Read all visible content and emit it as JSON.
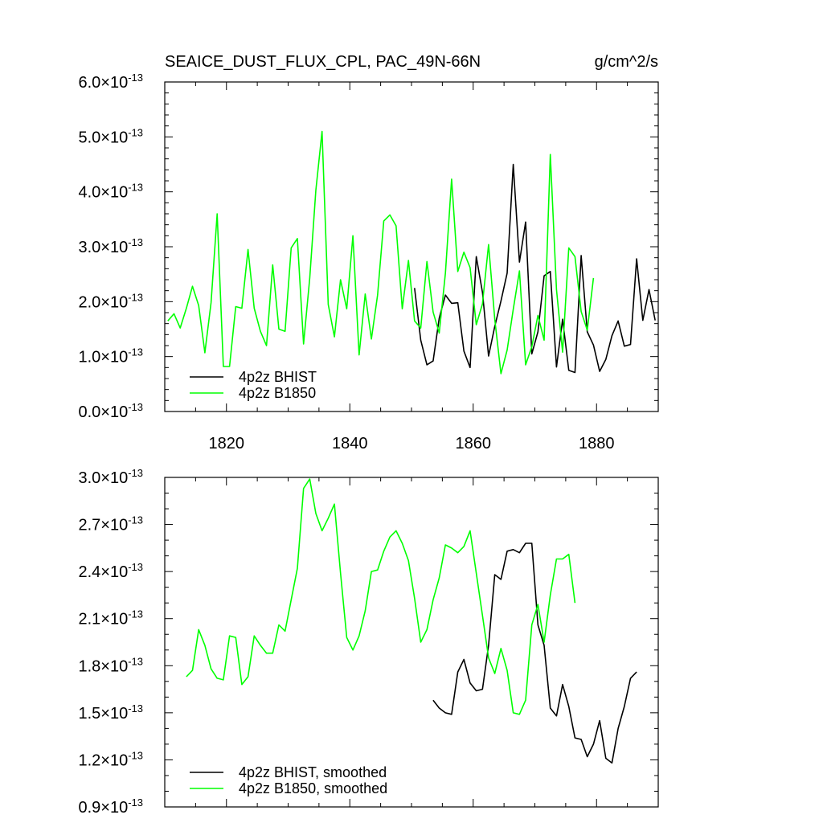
{
  "chart_data": [
    {
      "type": "line",
      "title": "SEAICE_DUST_FLUX_CPL, PAC_49N-66N",
      "units": "g/cm^2/s",
      "xlabel": "",
      "ylabel": "",
      "xlim": [
        1810,
        1890
      ],
      "ylim": [
        0.0,
        6.0
      ],
      "y_multiplier": "×10",
      "y_exponent": "-13",
      "x_ticks": [
        1820,
        1840,
        1860,
        1880
      ],
      "y_ticks": [
        0.0,
        1.0,
        2.0,
        3.0,
        4.0,
        5.0,
        6.0
      ],
      "y_tick_labels": [
        "0.0",
        "1.0",
        "2.0",
        "3.0",
        "4.0",
        "5.0",
        "6.0"
      ],
      "legend_position": "bottom-left",
      "series": [
        {
          "name": "4p2z BHIST",
          "color": "#000000",
          "x": [
            1850.5,
            1851.5,
            1852.5,
            1853.5,
            1854.5,
            1855.5,
            1856.5,
            1857.5,
            1858.5,
            1859.5,
            1860.5,
            1861.5,
            1862.5,
            1863.5,
            1864.5,
            1865.5,
            1866.5,
            1867.5,
            1868.5,
            1869.5,
            1870.5,
            1871.5,
            1872.5,
            1873.5,
            1874.5,
            1875.5,
            1876.5,
            1877.5,
            1878.5,
            1879.5,
            1880.5,
            1881.5,
            1882.5,
            1883.5,
            1884.5,
            1885.5,
            1886.5,
            1887.5,
            1888.5,
            1889.5
          ],
          "values": [
            2.25,
            1.3,
            0.85,
            0.92,
            1.7,
            2.12,
            1.97,
            1.98,
            1.1,
            0.8,
            2.82,
            2.17,
            1.01,
            1.55,
            2.01,
            2.52,
            4.5,
            2.72,
            3.45,
            1.05,
            1.45,
            2.47,
            2.55,
            0.81,
            1.68,
            0.75,
            0.71,
            2.84,
            1.45,
            1.21,
            0.73,
            0.95,
            1.38,
            1.65,
            1.19,
            1.22,
            2.78,
            1.66,
            2.22,
            1.66
          ]
        },
        {
          "name": "4p2z B1850",
          "color": "#00ff00",
          "x": [
            1810.5,
            1811.5,
            1812.5,
            1813.5,
            1814.5,
            1815.5,
            1816.5,
            1817.5,
            1818.5,
            1819.5,
            1820.5,
            1821.5,
            1822.5,
            1823.5,
            1824.5,
            1825.5,
            1826.5,
            1827.5,
            1828.5,
            1829.5,
            1830.5,
            1831.5,
            1832.5,
            1833.5,
            1834.5,
            1835.5,
            1836.5,
            1837.5,
            1838.5,
            1839.5,
            1840.5,
            1841.5,
            1842.5,
            1843.5,
            1844.5,
            1845.5,
            1846.5,
            1847.5,
            1848.5,
            1849.5,
            1850.5,
            1851.5,
            1852.5,
            1853.5,
            1854.5,
            1855.5,
            1856.5,
            1857.5,
            1858.5,
            1859.5,
            1860.5,
            1861.5,
            1862.5,
            1863.5,
            1864.5,
            1865.5,
            1866.5,
            1867.5,
            1868.5,
            1869.5,
            1870.5,
            1871.5,
            1872.5,
            1873.5,
            1874.5,
            1875.5,
            1876.5,
            1877.5,
            1878.5,
            1879.5
          ],
          "values": [
            1.65,
            1.78,
            1.52,
            1.88,
            2.28,
            1.93,
            1.07,
            1.98,
            3.6,
            0.82,
            0.82,
            1.91,
            1.88,
            2.95,
            1.88,
            1.46,
            1.2,
            2.67,
            1.5,
            1.46,
            2.98,
            3.15,
            1.23,
            2.43,
            4.03,
            5.1,
            1.95,
            1.36,
            2.4,
            1.87,
            3.2,
            1.03,
            2.14,
            1.32,
            2.12,
            3.47,
            3.58,
            3.38,
            1.87,
            2.75,
            1.65,
            1.52,
            2.73,
            1.81,
            1.43,
            2.52,
            4.23,
            2.55,
            2.9,
            2.62,
            1.58,
            1.96,
            3.04,
            1.68,
            0.69,
            1.12,
            1.86,
            2.56,
            0.85,
            1.18,
            1.75,
            1.3,
            4.68,
            2.22,
            1.08,
            2.98,
            2.82,
            1.82,
            1.48,
            2.43
          ]
        }
      ]
    },
    {
      "type": "line",
      "title": "",
      "xlabel": "",
      "ylabel": "",
      "xlim": [
        1810,
        1890
      ],
      "ylim": [
        0.9,
        3.0
      ],
      "y_multiplier": "×10",
      "y_exponent": "-13",
      "x_ticks": [
        1820,
        1840,
        1860,
        1880
      ],
      "y_ticks": [
        0.9,
        1.2,
        1.5,
        1.8,
        2.1,
        2.4,
        2.7,
        3.0
      ],
      "y_tick_labels": [
        "0.9",
        "1.2",
        "1.5",
        "1.8",
        "2.1",
        "2.4",
        "2.7",
        "3.0"
      ],
      "legend_position": "bottom-left",
      "series": [
        {
          "name": "4p2z BHIST, smoothed",
          "color": "#000000",
          "x": [
            1853.5,
            1854.5,
            1855.5,
            1856.5,
            1857.5,
            1858.5,
            1859.5,
            1860.5,
            1861.5,
            1862.5,
            1863.5,
            1864.5,
            1865.5,
            1866.5,
            1867.5,
            1868.5,
            1869.5,
            1870.5,
            1871.5,
            1872.5,
            1873.5,
            1874.5,
            1875.5,
            1876.5,
            1877.5,
            1878.5,
            1879.5,
            1880.5,
            1881.5,
            1882.5,
            1883.5,
            1884.5,
            1885.5,
            1886.5
          ],
          "values": [
            1.58,
            1.53,
            1.5,
            1.49,
            1.76,
            1.84,
            1.69,
            1.64,
            1.65,
            1.93,
            2.38,
            2.35,
            2.53,
            2.54,
            2.52,
            2.58,
            2.58,
            2.06,
            1.93,
            1.53,
            1.48,
            1.68,
            1.54,
            1.34,
            1.33,
            1.22,
            1.3,
            1.45,
            1.21,
            1.18,
            1.4,
            1.54,
            1.72,
            1.76
          ]
        },
        {
          "name": "4p2z B1850, smoothed",
          "color": "#00ff00",
          "x": [
            1813.5,
            1814.5,
            1815.5,
            1816.5,
            1817.5,
            1818.5,
            1819.5,
            1820.5,
            1821.5,
            1822.5,
            1823.5,
            1824.5,
            1825.5,
            1826.5,
            1827.5,
            1828.5,
            1829.5,
            1830.5,
            1831.5,
            1832.5,
            1833.5,
            1834.5,
            1835.5,
            1836.5,
            1837.5,
            1838.5,
            1839.5,
            1840.5,
            1841.5,
            1842.5,
            1843.5,
            1844.5,
            1845.5,
            1846.5,
            1847.5,
            1848.5,
            1849.5,
            1850.5,
            1851.5,
            1852.5,
            1853.5,
            1854.5,
            1855.5,
            1856.5,
            1857.5,
            1858.5,
            1859.5,
            1860.5,
            1861.5,
            1862.5,
            1863.5,
            1864.5,
            1865.5,
            1866.5,
            1867.5,
            1868.5,
            1869.5,
            1870.5,
            1871.5,
            1872.5,
            1873.5,
            1874.5,
            1875.5,
            1876.5
          ],
          "values": [
            1.73,
            1.77,
            2.03,
            1.93,
            1.78,
            1.72,
            1.71,
            1.99,
            1.98,
            1.68,
            1.73,
            1.99,
            1.93,
            1.88,
            1.88,
            2.06,
            2.02,
            2.22,
            2.42,
            2.93,
            2.99,
            2.77,
            2.66,
            2.74,
            2.83,
            2.39,
            1.98,
            1.9,
            1.99,
            2.15,
            2.4,
            2.41,
            2.53,
            2.62,
            2.66,
            2.58,
            2.47,
            2.23,
            1.95,
            2.03,
            2.22,
            2.36,
            2.57,
            2.55,
            2.52,
            2.56,
            2.66,
            2.39,
            2.12,
            1.85,
            1.75,
            1.91,
            1.77,
            1.5,
            1.49,
            1.58,
            2.06,
            2.19,
            1.95,
            2.25,
            2.48,
            2.48,
            2.51,
            2.2
          ]
        }
      ]
    }
  ]
}
